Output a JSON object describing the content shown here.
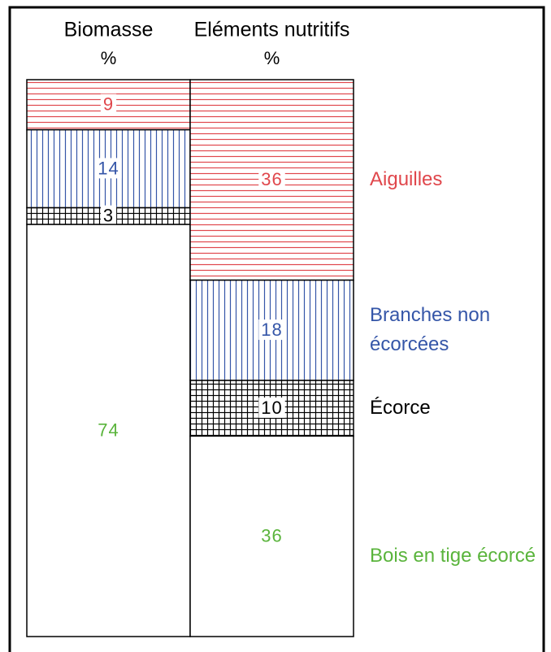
{
  "chart_data": {
    "type": "stacked_bar",
    "categories": [
      "Biomasse",
      "Eléments nutritifs"
    ],
    "unit": "%",
    "ylim": [
      0,
      100
    ],
    "series": [
      {
        "name": "Aiguilles",
        "color": "#e0474c",
        "pattern": "horizontal",
        "values": [
          9,
          36
        ]
      },
      {
        "name": "Branches non écorcées",
        "color": "#3556a8",
        "pattern": "vertical",
        "values": [
          14,
          18
        ]
      },
      {
        "name": "Écorce",
        "color": "#000000",
        "pattern": "grid",
        "values": [
          3,
          10
        ]
      },
      {
        "name": "Bois en tige écorcé",
        "color": "#5ab43c",
        "pattern": "none",
        "values": [
          74,
          36
        ]
      }
    ]
  }
}
